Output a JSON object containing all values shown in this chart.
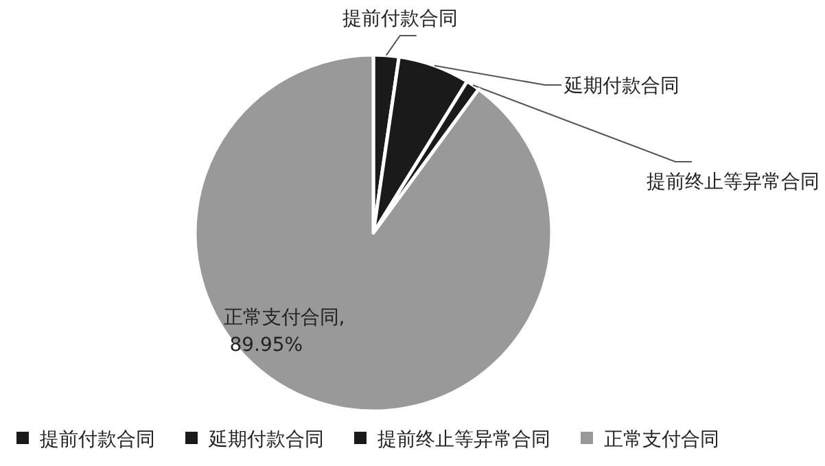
{
  "chart_data": {
    "type": "pie",
    "categories": [
      "提前付款合同",
      "延期付款合同",
      "提前终止等异常合同",
      "正常支付合同"
    ],
    "values": [
      2.3,
      6.5,
      1.25,
      89.95
    ],
    "colors": [
      "#1a1a1a",
      "#1a1a1a",
      "#1a1a1a",
      "#999999"
    ],
    "value_labels": [
      null,
      null,
      null,
      "正常支付合同, 89.95%"
    ],
    "legend": "bottom"
  }
}
